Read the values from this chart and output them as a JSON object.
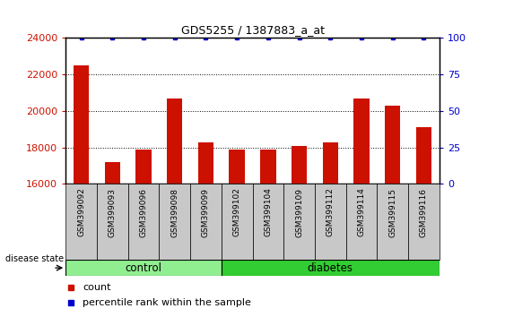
{
  "title": "GDS5255 / 1387883_a_at",
  "categories": [
    "GSM399092",
    "GSM399093",
    "GSM399096",
    "GSM399098",
    "GSM399099",
    "GSM399102",
    "GSM399104",
    "GSM399109",
    "GSM399112",
    "GSM399114",
    "GSM399115",
    "GSM399116"
  ],
  "counts": [
    22500,
    17200,
    17900,
    20700,
    18300,
    17900,
    17900,
    18100,
    18300,
    20700,
    20300,
    19100
  ],
  "percentile_ranks": [
    100,
    100,
    100,
    100,
    100,
    100,
    100,
    100,
    100,
    100,
    100,
    100
  ],
  "bar_color": "#cc1100",
  "dot_color": "#0000cc",
  "ylim_left": [
    16000,
    24000
  ],
  "ylim_right": [
    0,
    100
  ],
  "yticks_left": [
    16000,
    18000,
    20000,
    22000,
    24000
  ],
  "yticks_right": [
    0,
    25,
    50,
    75,
    100
  ],
  "grid_values": [
    18000,
    20000,
    22000
  ],
  "control_samples": 5,
  "disease_state_label": "disease state",
  "control_label": "control",
  "diabetes_label": "diabetes",
  "legend_count_label": "count",
  "legend_percentile_label": "percentile rank within the sample",
  "control_color": "#90EE90",
  "diabetes_color": "#32CD32",
  "tick_bg_color": "#c8c8c8",
  "bar_width": 0.5,
  "baseline": 16000
}
